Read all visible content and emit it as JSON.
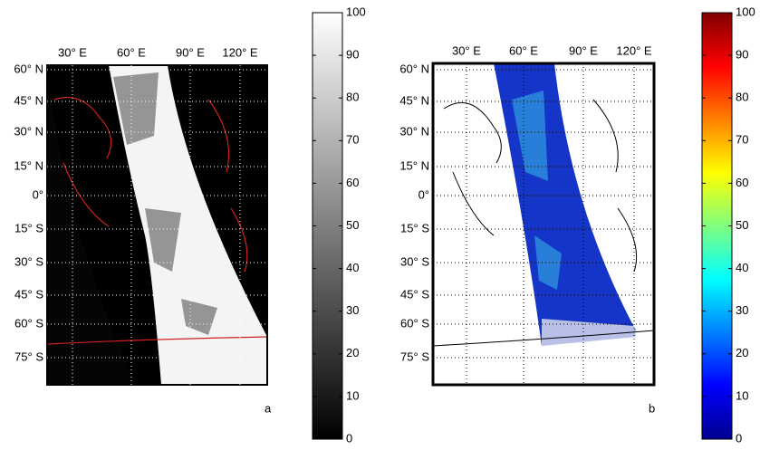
{
  "panels": [
    {
      "label": "a",
      "colormap": "gray",
      "lon_labels": [
        "30° E",
        "60° E",
        "90° E",
        "120° E"
      ],
      "lat_labels": [
        "60° N",
        "45° N",
        "30° N",
        "15° N",
        "0°",
        "15° S",
        "30° S",
        "45° S",
        "60° S",
        "75° S"
      ],
      "colorbar": {
        "lim": [
          0,
          100
        ],
        "ticks": [
          0,
          10,
          20,
          30,
          40,
          50,
          60,
          70,
          80,
          90,
          100
        ]
      }
    },
    {
      "label": "b",
      "colormap": "jet",
      "lon_labels": [
        "30° E",
        "60° E",
        "90° E",
        "120° E"
      ],
      "lat_labels": [
        "60° N",
        "45° N",
        "30° N",
        "15° N",
        "0°",
        "15° S",
        "30° S",
        "45° S",
        "60° S",
        "75° S"
      ],
      "colorbar": {
        "lim": [
          0,
          100
        ],
        "ticks": [
          0,
          10,
          20,
          30,
          40,
          50,
          60,
          70,
          80,
          90,
          100
        ]
      }
    }
  ]
}
